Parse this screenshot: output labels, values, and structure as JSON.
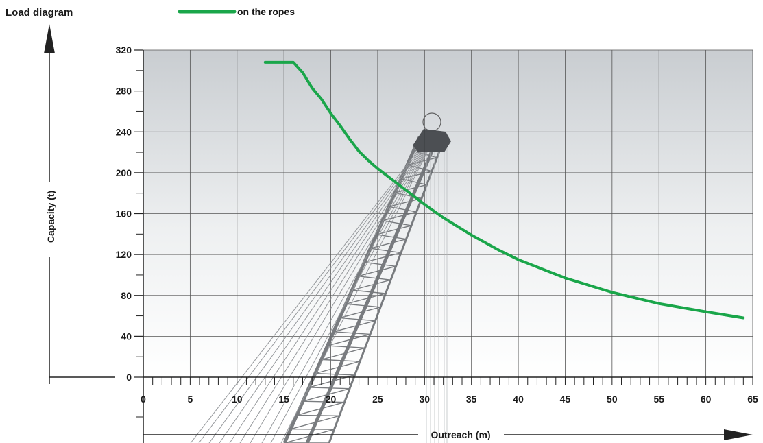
{
  "chart_data": {
    "type": "line",
    "title": "Load diagram",
    "xlabel": "Outreach (m)",
    "ylabel": "Capacity (t)",
    "xlim": [
      0,
      65
    ],
    "ylim": [
      0,
      320
    ],
    "x_ticks": [
      0,
      5,
      10,
      15,
      20,
      25,
      30,
      35,
      40,
      45,
      50,
      55,
      60,
      65
    ],
    "y_ticks": [
      0,
      40,
      80,
      120,
      160,
      200,
      240,
      280,
      320
    ],
    "grid": true,
    "legend_position": "top",
    "series": [
      {
        "name": "on the ropes",
        "color": "#1aa64a",
        "x": [
          13,
          16,
          17,
          18,
          19,
          20,
          21,
          22,
          23,
          24,
          25,
          26,
          28,
          30,
          32,
          35,
          38,
          40,
          45,
          50,
          55,
          60,
          64
        ],
        "y": [
          308,
          308,
          298,
          283,
          272,
          258,
          246,
          233,
          221,
          212,
          204,
          197,
          183,
          169,
          156,
          139,
          124,
          115,
          97,
          83,
          72,
          64,
          58
        ]
      }
    ]
  }
}
